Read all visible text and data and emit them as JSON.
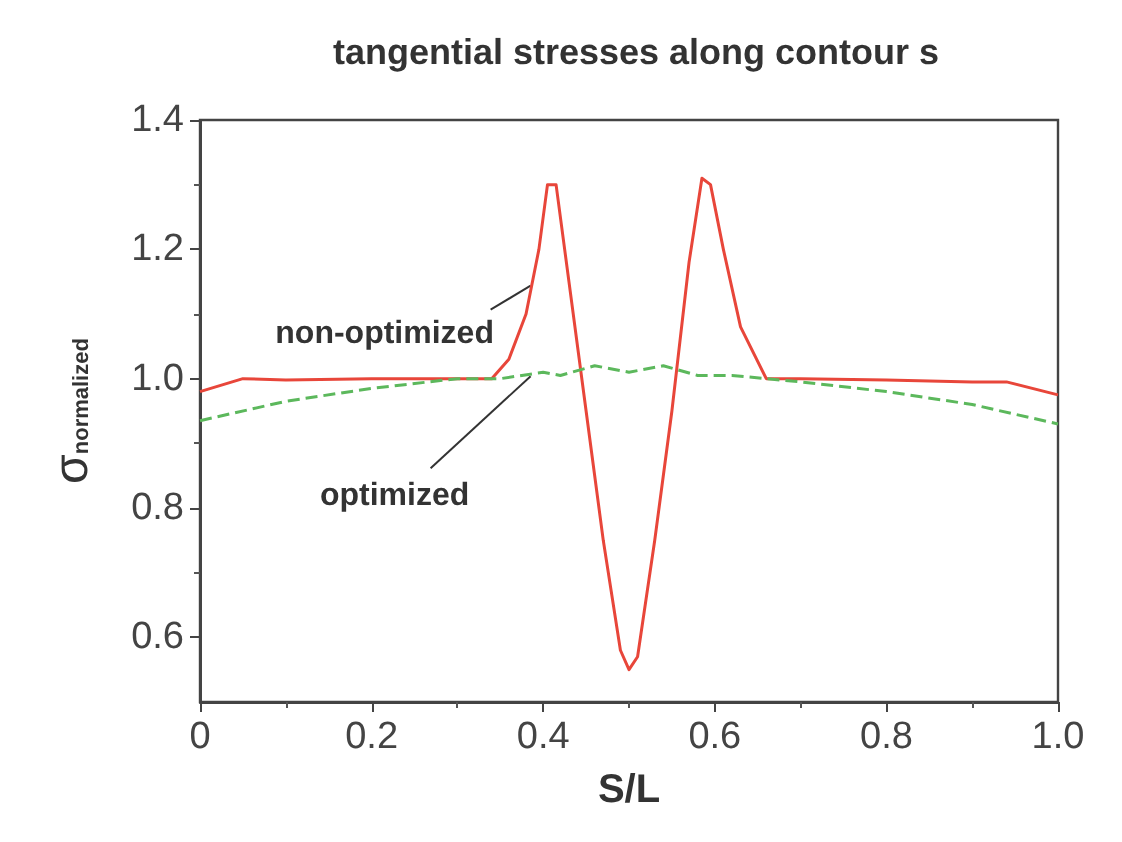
{
  "chart_data": {
    "type": "line",
    "title": "tangential stresses along contour s",
    "xlabel": "S/L",
    "ylabel": "σ$_{normalized}$",
    "xlim": [
      0,
      1.0
    ],
    "xticks": [
      0,
      0.2,
      0.4,
      0.6,
      0.8,
      {
        "value": 1.0,
        "label": "1.0"
      }
    ],
    "ylim": [
      0.5,
      1.4
    ],
    "yticks": [
      0.6,
      0.8,
      {
        "value": 1.0,
        "label": "1.0"
      },
      1.2,
      1.4
    ],
    "grid": false,
    "marker": "none",
    "series": [
      {
        "color": "#e8463a",
        "line_style": "solid",
        "x": [
          0,
          0.05,
          0.1,
          0.2,
          0.3,
          0.34,
          0.36,
          0.38,
          0.395,
          0.405,
          0.415,
          0.43,
          0.45,
          0.47,
          0.49,
          0.5,
          0.51,
          0.53,
          0.55,
          0.57,
          0.585,
          0.595,
          0.61,
          0.63,
          0.66,
          0.7,
          0.8,
          0.9,
          0.94,
          1.0
        ],
        "values": [
          0.98,
          1.0,
          0.998,
          1.0,
          1.0,
          1.0,
          1.03,
          1.1,
          1.2,
          1.3,
          1.3,
          1.15,
          0.95,
          0.75,
          0.58,
          0.55,
          0.57,
          0.75,
          0.95,
          1.18,
          1.31,
          1.3,
          1.2,
          1.08,
          1.0,
          1.0,
          0.998,
          0.995,
          0.995,
          0.975
        ]
      },
      {
        "color": "#5cb85c",
        "line_style": "dashed",
        "x": [
          0,
          0.1,
          0.2,
          0.3,
          0.35,
          0.4,
          0.42,
          0.46,
          0.5,
          0.54,
          0.58,
          0.62,
          0.7,
          0.8,
          0.9,
          1.0
        ],
        "values": [
          0.935,
          0.965,
          0.985,
          1.0,
          1.0,
          1.01,
          1.005,
          1.02,
          1.01,
          1.02,
          1.005,
          1.005,
          0.995,
          0.98,
          0.96,
          0.93
        ]
      }
    ],
    "annotations": [
      {
        "text": "non-optimized",
        "x": 0.39,
        "y": 1.15
      },
      {
        "text": "optimized",
        "x": 0.39,
        "y": 1.01
      }
    ]
  }
}
